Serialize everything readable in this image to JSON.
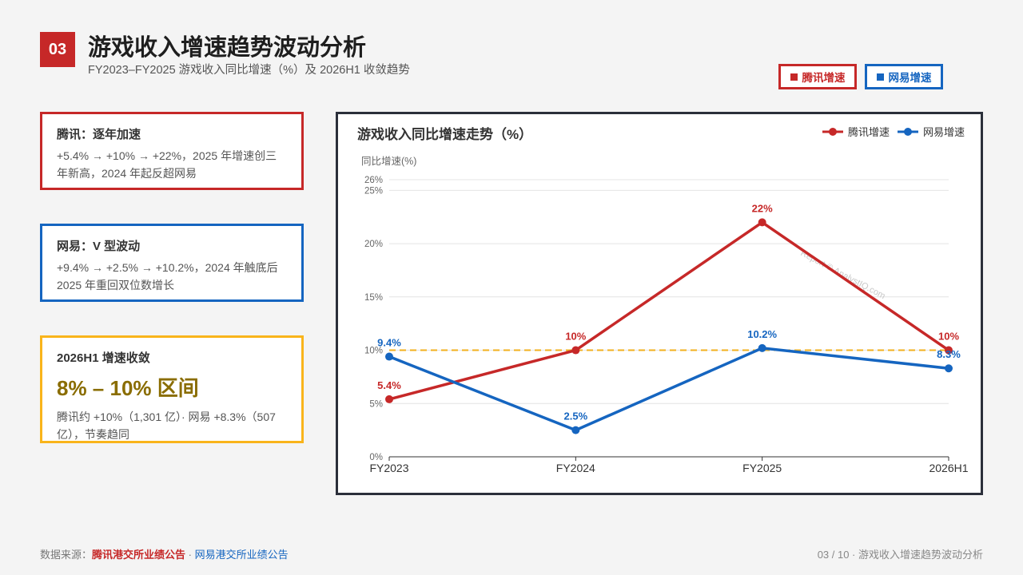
{
  "header": {
    "badge": "03",
    "title": "游戏收入增速趋势波动分析",
    "subtitle": "FY2023–FY2025 游戏收入同比增速（%）及 2026H1 收敛趋势"
  },
  "legend_chips": [
    {
      "label": "腾讯增速"
    },
    {
      "label": "网易增速"
    }
  ],
  "cards": [
    {
      "title": "腾讯：逐年加速",
      "text": "+5.4% → +10% → +22%，2025 年增速创三年新高，2024 年起反超网易"
    },
    {
      "title": "网易：V 型波动",
      "text": "+9.4% → +2.5% → +10.2%，2024 年触底后 2025 年重回双位数增长"
    },
    {
      "title": "2026H1 增速收敛",
      "highlight": "8% – 10% 区间",
      "text": "腾讯约 +10%（1,301 亿）· 网易 +8.3%（507 亿），节奏趋同"
    }
  ],
  "chart_data": {
    "type": "line",
    "title": "游戏收入同比增速走势（%）",
    "ylabel": "同比增速(%)",
    "categories": [
      "FY2023",
      "FY2024",
      "FY2025",
      "2026H1"
    ],
    "ylim": [
      0,
      26
    ],
    "yticks": [
      "0%",
      "5%",
      "10%",
      "15%",
      "20%",
      "25%",
      "26%"
    ],
    "ytick_values": [
      0,
      5,
      10,
      15,
      20,
      25,
      26
    ],
    "reference_line": {
      "value": 10,
      "color": "#f2b01e",
      "style": "dashed"
    },
    "legend_position": "top-right",
    "grid": true,
    "watermark": "Report © AnalystIQ.com",
    "series": [
      {
        "name": "腾讯增速",
        "color": "#c62828",
        "values": [
          5.4,
          10,
          22,
          10
        ],
        "labels": [
          "5.4%",
          "10%",
          "22%",
          "10%"
        ]
      },
      {
        "name": "网易增速",
        "color": "#1565c0",
        "values": [
          9.4,
          2.5,
          10.2,
          8.3
        ],
        "labels": [
          "9.4%",
          "2.5%",
          "10.2%",
          "8.3%"
        ]
      }
    ]
  },
  "footer": {
    "source_prefix": "数据来源：",
    "source_tencent": "腾讯港交所业绩公告",
    "separator": " · ",
    "source_netease": "网易港交所业绩公告",
    "page_info": "03 / 10 · 游戏收入增速趋势波动分析"
  }
}
